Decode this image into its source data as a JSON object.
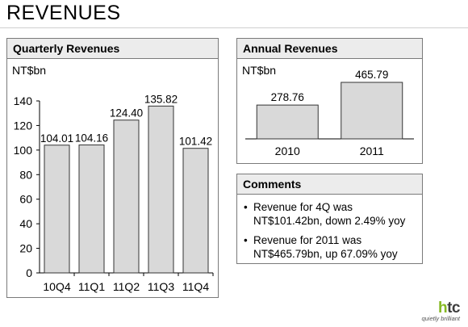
{
  "page": {
    "title": "REVENUES"
  },
  "quarterly": {
    "heading": "Quarterly Revenues",
    "unit": "NT$bn"
  },
  "annual": {
    "heading": "Annual Revenues",
    "unit": "NT$bn"
  },
  "comments": {
    "heading": "Comments",
    "items": [
      {
        "line1": "Revenue for 4Q was",
        "line2": "NT$101.42bn, down 2.49% yoy"
      },
      {
        "line1": "Revenue for 2011 was",
        "line2": "NT$465.79bn, up 67.09% yoy"
      }
    ]
  },
  "logo": {
    "word_h": "h",
    "word_rest": "tc",
    "tagline": "quietly brilliant"
  },
  "colors": {
    "bar_fill": "#d9d9d9",
    "bar_stroke": "#333333",
    "logo_accent": "#86b923"
  },
  "chart_data": [
    {
      "type": "bar",
      "title": "Quarterly Revenues",
      "ylabel": "NT$bn",
      "categories": [
        "10Q4",
        "11Q1",
        "11Q2",
        "11Q3",
        "11Q4"
      ],
      "values": [
        104.01,
        104.16,
        124.4,
        135.82,
        101.42
      ],
      "value_labels": [
        "104.01",
        "104.16",
        "124.40",
        "135.82",
        "101.42"
      ],
      "ylim": [
        0,
        140
      ],
      "yticks": [
        0,
        20,
        40,
        60,
        80,
        100,
        120,
        140
      ],
      "grid": false
    },
    {
      "type": "bar",
      "title": "Annual Revenues",
      "ylabel": "NT$bn",
      "categories": [
        "2010",
        "2011"
      ],
      "values": [
        278.76,
        465.79
      ],
      "value_labels": [
        "278.76",
        "465.79"
      ],
      "grid": false
    }
  ]
}
